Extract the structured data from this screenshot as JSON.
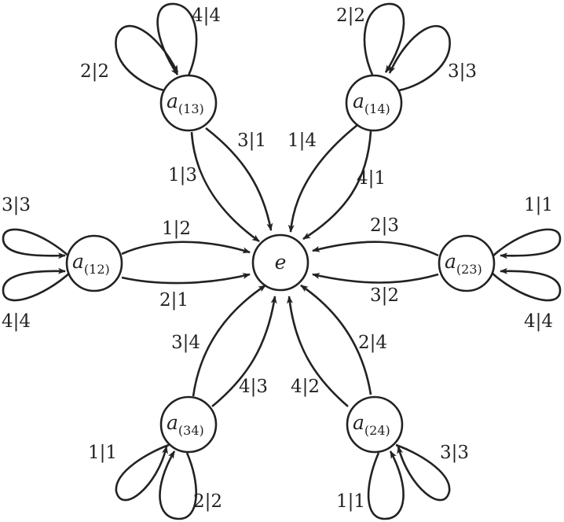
{
  "colors": {
    "stroke": "#222222",
    "background": "#ffffff"
  },
  "nodes": {
    "e": {
      "main": "e",
      "sub": ""
    },
    "a13": {
      "main": "a",
      "sub": "(13)"
    },
    "a14": {
      "main": "a",
      "sub": "(14)"
    },
    "a12": {
      "main": "a",
      "sub": "(12)"
    },
    "a23": {
      "main": "a",
      "sub": "(23)"
    },
    "a34": {
      "main": "a",
      "sub": "(34)"
    },
    "a24": {
      "main": "a",
      "sub": "(24)"
    }
  },
  "edges": {
    "a13_loop_upper": "4|4",
    "a13_loop_lower": "2|2",
    "a13_to_e_outer": "1|3",
    "a13_to_e_inner": "3|1",
    "a14_loop_upper": "2|2",
    "a14_loop_lower": "3|3",
    "a14_to_e_outer": "1|4",
    "a14_to_e_inner": "4|1",
    "a12_loop_upper": "3|3",
    "a12_loop_lower": "4|4",
    "a12_to_e_upper": "1|2",
    "a12_to_e_lower": "2|1",
    "a23_loop_upper": "1|1",
    "a23_loop_lower": "4|4",
    "a23_to_e_upper": "2|3",
    "a23_to_e_lower": "3|2",
    "a34_loop_left": "1|1",
    "a34_loop_right": "2|2",
    "a34_to_e_left": "3|4",
    "a34_to_e_right": "4|3",
    "a24_loop_left": "1|1",
    "a24_loop_right": "3|3",
    "a24_to_e_left": "4|2",
    "a24_to_e_right": "2|4"
  }
}
